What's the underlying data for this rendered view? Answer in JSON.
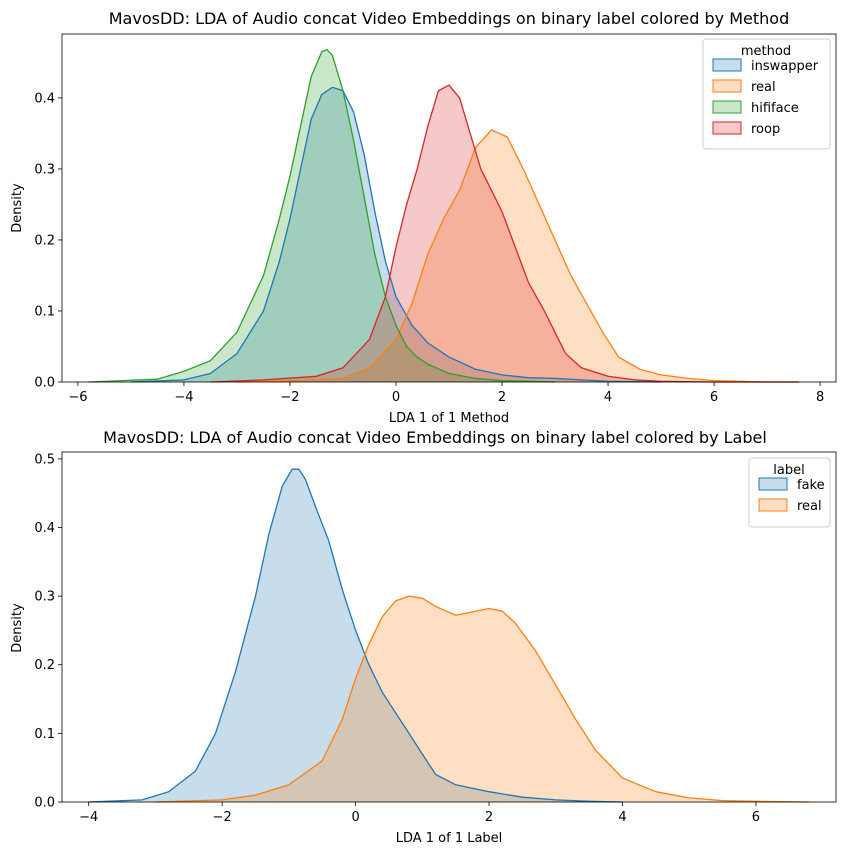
{
  "chart_data": [
    {
      "type": "area",
      "title": "MavosDD: LDA of Audio concat Video Embeddings on binary label colored by Method",
      "xlabel": "LDA 1 of 1 Method",
      "ylabel": "Density",
      "xlim": [
        -6.3,
        8.3
      ],
      "ylim": [
        0,
        0.49
      ],
      "xticks": [
        -6,
        -4,
        -2,
        0,
        2,
        4,
        6,
        8
      ],
      "yticks": [
        0.0,
        0.1,
        0.2,
        0.3,
        0.4
      ],
      "xtick_labels": [
        "−6",
        "−4",
        "−2",
        "0",
        "2",
        "4",
        "6",
        "8"
      ],
      "ytick_labels": [
        "0.0",
        "0.1",
        "0.2",
        "0.3",
        "0.4"
      ],
      "grid": false,
      "legend": {
        "title": "method",
        "placement": "top-right"
      },
      "series": [
        {
          "name": "inswapper",
          "color": "#1f77b4",
          "x": [
            -5.0,
            -4.0,
            -3.5,
            -3.0,
            -2.5,
            -2.2,
            -2.0,
            -1.8,
            -1.6,
            -1.4,
            -1.2,
            -1.0,
            -0.8,
            -0.6,
            -0.4,
            -0.2,
            0.0,
            0.3,
            0.6,
            1.0,
            1.5,
            2.0,
            2.5,
            3.0,
            3.5,
            4.0,
            5.0
          ],
          "y": [
            0.0,
            0.003,
            0.012,
            0.04,
            0.1,
            0.17,
            0.23,
            0.3,
            0.37,
            0.405,
            0.415,
            0.41,
            0.38,
            0.32,
            0.24,
            0.17,
            0.12,
            0.08,
            0.055,
            0.035,
            0.018,
            0.01,
            0.006,
            0.005,
            0.003,
            0.001,
            0.0
          ]
        },
        {
          "name": "real",
          "color": "#ff7f0e",
          "x": [
            -3.0,
            -2.0,
            -1.0,
            -0.5,
            0.0,
            0.3,
            0.6,
            0.9,
            1.2,
            1.5,
            1.8,
            2.1,
            2.4,
            2.7,
            3.0,
            3.3,
            3.6,
            3.9,
            4.2,
            4.6,
            5.0,
            5.5,
            6.0,
            6.5,
            7.0,
            7.6
          ],
          "y": [
            0.0,
            0.002,
            0.005,
            0.02,
            0.06,
            0.11,
            0.18,
            0.23,
            0.27,
            0.33,
            0.355,
            0.345,
            0.3,
            0.25,
            0.2,
            0.15,
            0.11,
            0.07,
            0.035,
            0.018,
            0.01,
            0.005,
            0.002,
            0.001,
            0.0,
            0.0
          ]
        },
        {
          "name": "hififace",
          "color": "#2ca02c",
          "x": [
            -5.8,
            -4.5,
            -4.0,
            -3.5,
            -3.0,
            -2.5,
            -2.2,
            -2.0,
            -1.8,
            -1.6,
            -1.4,
            -1.3,
            -1.2,
            -1.0,
            -0.8,
            -0.6,
            -0.4,
            -0.2,
            0.0,
            0.2,
            0.4,
            0.6,
            1.0,
            1.5,
            2.0,
            2.5,
            3.0
          ],
          "y": [
            0.0,
            0.004,
            0.015,
            0.03,
            0.07,
            0.15,
            0.23,
            0.29,
            0.36,
            0.43,
            0.465,
            0.468,
            0.46,
            0.41,
            0.34,
            0.26,
            0.18,
            0.12,
            0.08,
            0.05,
            0.035,
            0.025,
            0.012,
            0.005,
            0.002,
            0.001,
            0.0
          ]
        },
        {
          "name": "roop",
          "color": "#d62728",
          "x": [
            -3.5,
            -2.5,
            -1.5,
            -1.0,
            -0.5,
            -0.2,
            0.0,
            0.2,
            0.4,
            0.6,
            0.8,
            1.0,
            1.2,
            1.4,
            1.6,
            1.8,
            2.0,
            2.2,
            2.5,
            2.8,
            3.0,
            3.2,
            3.5,
            4.0,
            4.5,
            5.0,
            6.0,
            7.6
          ],
          "y": [
            0.0,
            0.003,
            0.008,
            0.02,
            0.06,
            0.12,
            0.19,
            0.25,
            0.3,
            0.36,
            0.41,
            0.418,
            0.4,
            0.35,
            0.3,
            0.27,
            0.24,
            0.2,
            0.14,
            0.1,
            0.07,
            0.04,
            0.02,
            0.008,
            0.003,
            0.001,
            0.0,
            0.0
          ]
        }
      ]
    },
    {
      "type": "area",
      "title": "MavosDD: LDA of Audio concat Video Embeddings on binary label colored by Label",
      "xlabel": "LDA 1 of 1 Label",
      "ylabel": "Density",
      "xlim": [
        -4.4,
        7.2
      ],
      "ylim": [
        0,
        0.51
      ],
      "xticks": [
        -4,
        -2,
        0,
        2,
        4,
        6
      ],
      "yticks": [
        0.0,
        0.1,
        0.2,
        0.3,
        0.4,
        0.5
      ],
      "xtick_labels": [
        "−4",
        "−2",
        "0",
        "2",
        "4",
        "6"
      ],
      "ytick_labels": [
        "0.0",
        "0.1",
        "0.2",
        "0.3",
        "0.4",
        "0.5"
      ],
      "grid": false,
      "legend": {
        "title": "label",
        "placement": "top-right"
      },
      "series": [
        {
          "name": "fake",
          "color": "#1f77b4",
          "x": [
            -4.0,
            -3.2,
            -2.8,
            -2.4,
            -2.1,
            -1.8,
            -1.5,
            -1.3,
            -1.1,
            -0.95,
            -0.85,
            -0.75,
            -0.6,
            -0.4,
            -0.2,
            0.0,
            0.2,
            0.4,
            0.6,
            0.8,
            1.0,
            1.2,
            1.5,
            2.0,
            2.5,
            3.0,
            3.5,
            4.0
          ],
          "y": [
            0.0,
            0.003,
            0.015,
            0.045,
            0.1,
            0.19,
            0.3,
            0.39,
            0.46,
            0.485,
            0.485,
            0.47,
            0.43,
            0.38,
            0.31,
            0.25,
            0.2,
            0.16,
            0.13,
            0.1,
            0.07,
            0.04,
            0.025,
            0.015,
            0.007,
            0.003,
            0.001,
            0.0
          ]
        },
        {
          "name": "real",
          "color": "#ff7f0e",
          "x": [
            -3.0,
            -2.0,
            -1.5,
            -1.0,
            -0.5,
            -0.2,
            0.0,
            0.2,
            0.4,
            0.6,
            0.8,
            1.0,
            1.2,
            1.5,
            1.8,
            2.0,
            2.2,
            2.4,
            2.7,
            3.0,
            3.3,
            3.6,
            4.0,
            4.5,
            5.0,
            5.5,
            6.0,
            6.8
          ],
          "y": [
            0.0,
            0.003,
            0.01,
            0.025,
            0.06,
            0.12,
            0.18,
            0.23,
            0.27,
            0.293,
            0.3,
            0.297,
            0.285,
            0.272,
            0.278,
            0.282,
            0.278,
            0.26,
            0.22,
            0.17,
            0.12,
            0.075,
            0.035,
            0.015,
            0.006,
            0.002,
            0.001,
            0.0
          ]
        }
      ]
    }
  ]
}
